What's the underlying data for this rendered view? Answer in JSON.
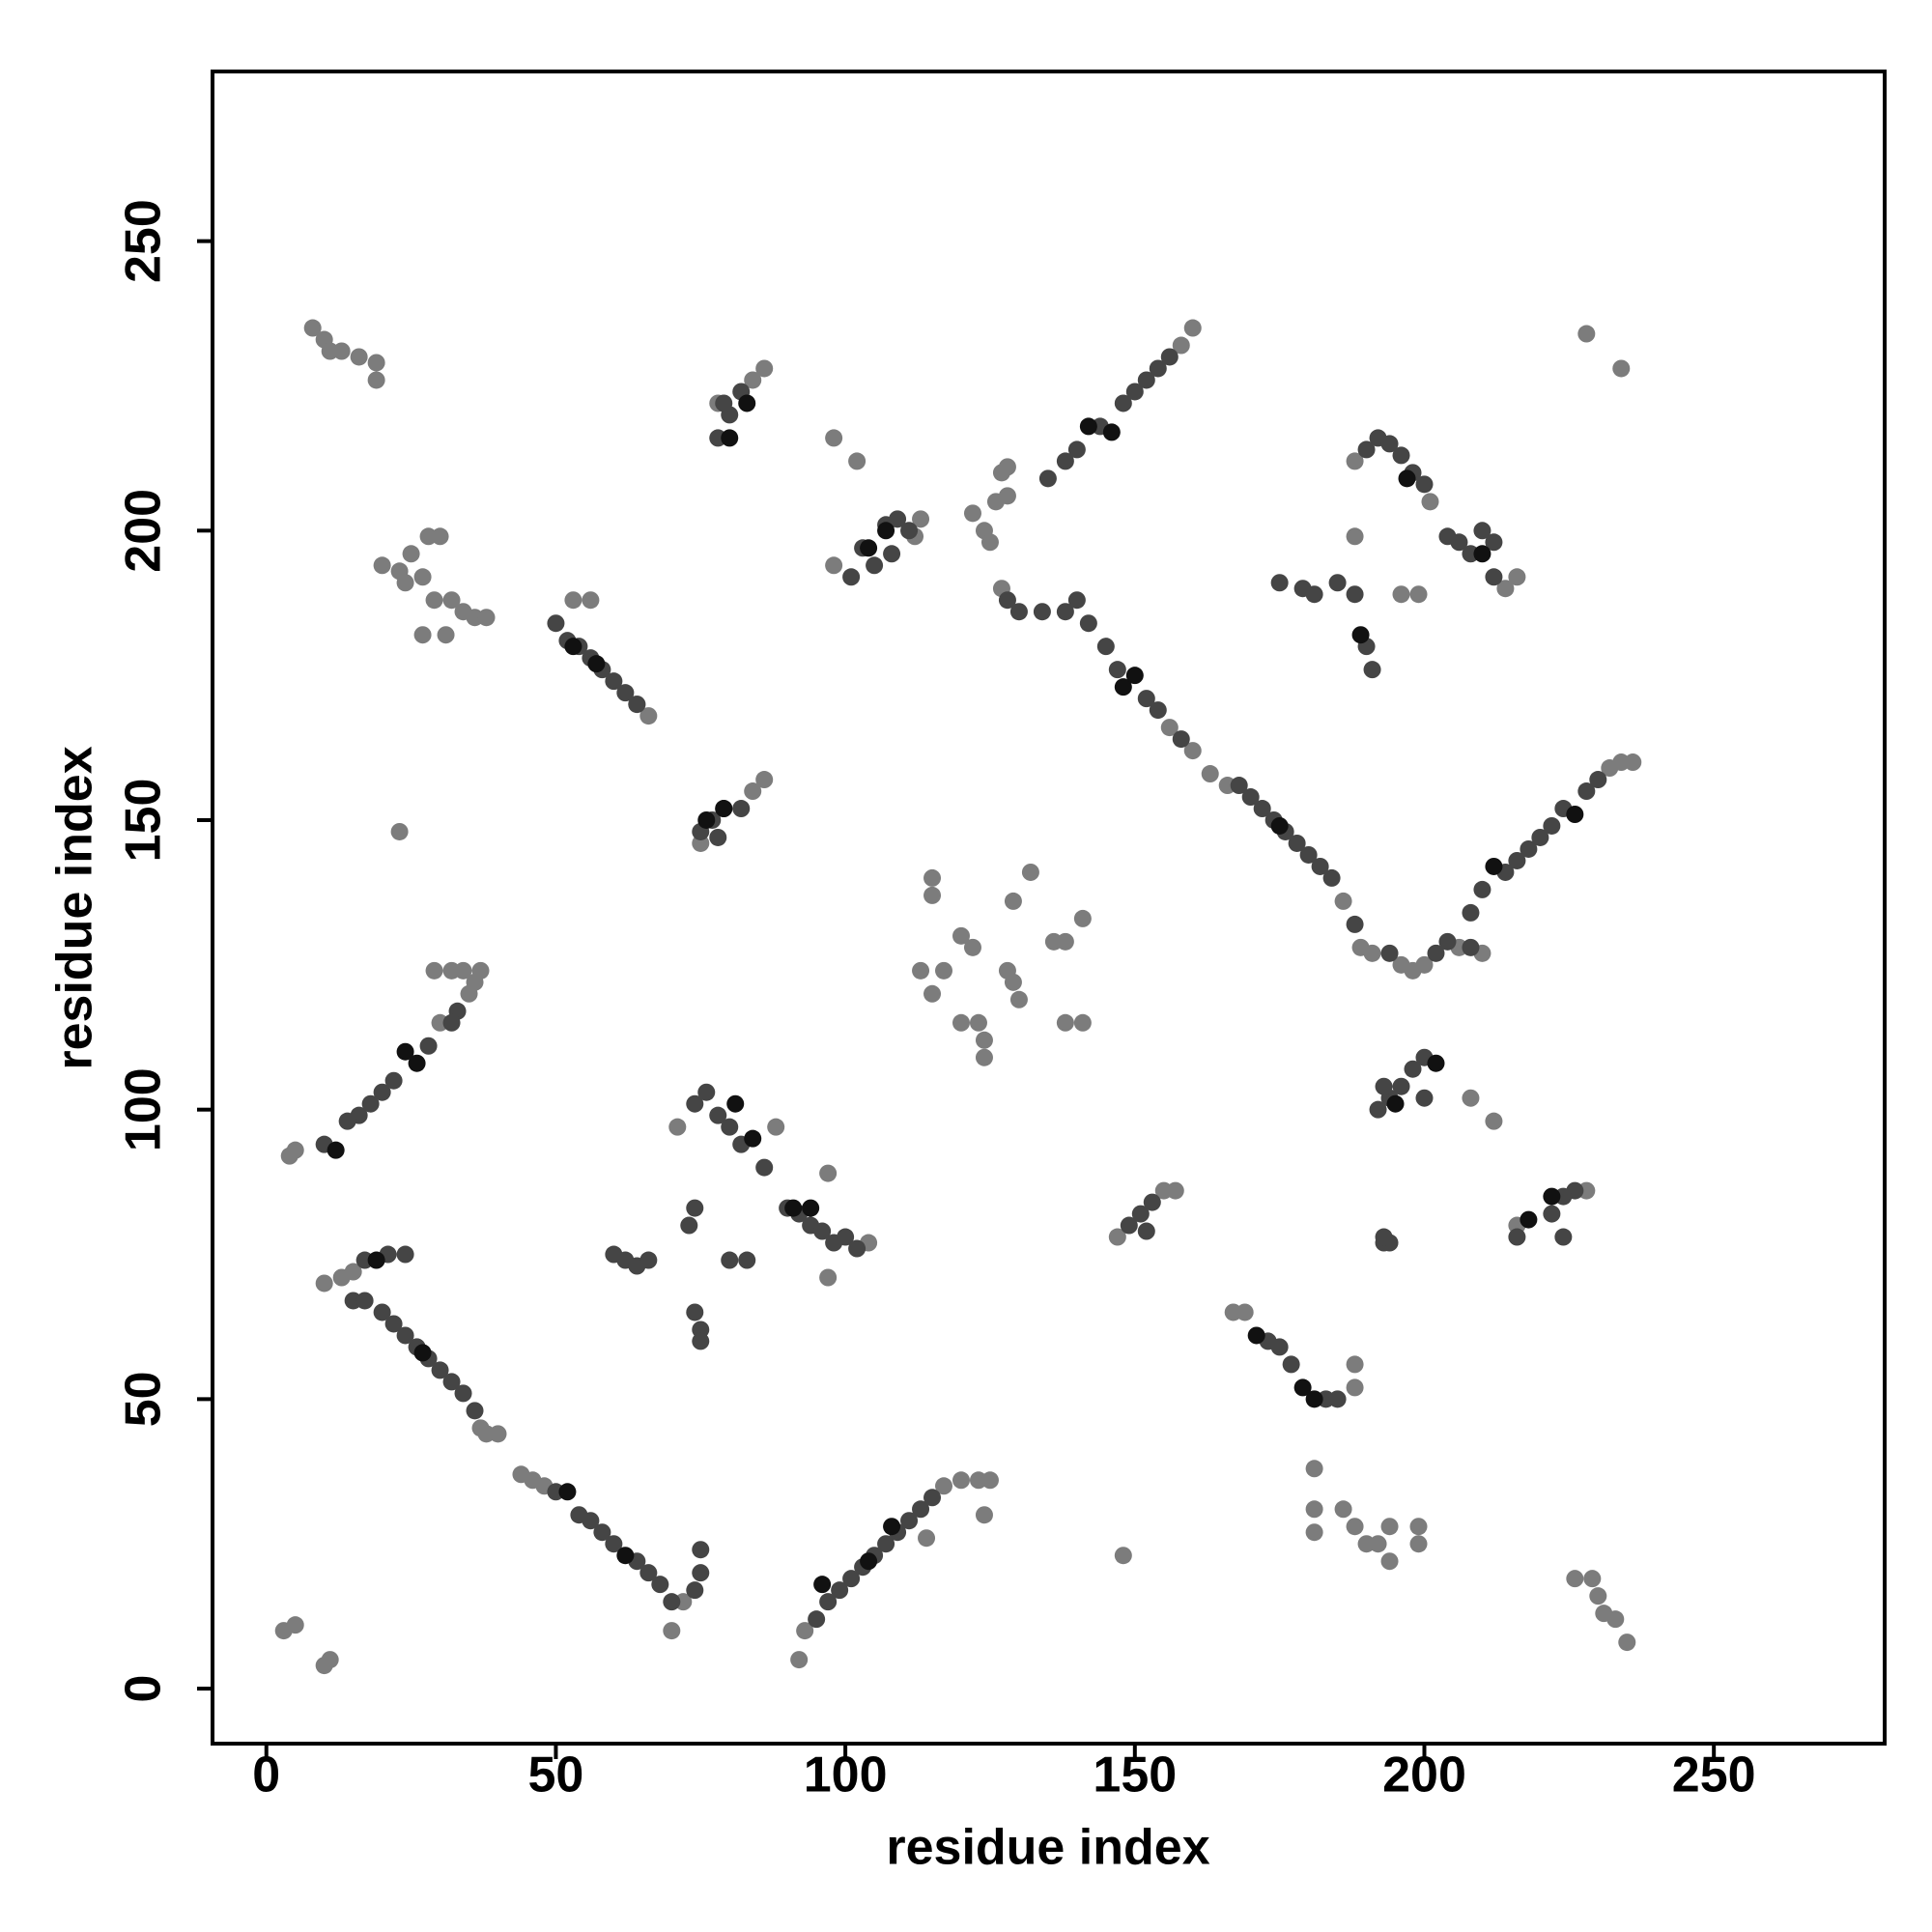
{
  "chart_data": {
    "type": "scatter",
    "xlabel": "residue index",
    "ylabel": "residue index",
    "xlim": [
      -9.3,
      279.5
    ],
    "ylim": [
      -9.5,
      279.3
    ],
    "xticks": [
      0,
      50,
      100,
      150,
      200,
      250
    ],
    "yticks": [
      0,
      50,
      100,
      150,
      200,
      250
    ],
    "marker_radius": 9,
    "series": [
      {
        "color": "#7c7c7c",
        "x": [
          8,
          10,
          11,
          13,
          16,
          19,
          19,
          20,
          23,
          25,
          27,
          28,
          30,
          29,
          32,
          34,
          36,
          38,
          27,
          31,
          24,
          98,
          102,
          122,
          124,
          126,
          127,
          128,
          125,
          127,
          128,
          115,
          115,
          120,
          122,
          117,
          113,
          115,
          120,
          123,
          124,
          124,
          128,
          129,
          130,
          132,
          129,
          136,
          138,
          138,
          141,
          141,
          4,
          5,
          29,
          32,
          34,
          35,
          36,
          37,
          30,
          37,
          38,
          40,
          44,
          46,
          48,
          10,
          13,
          15,
          117,
          120,
          123,
          125,
          124,
          114,
          208,
          212,
          148,
          181,
          181,
          181,
          186,
          188,
          190,
          192,
          194,
          194,
          199,
          199,
          226,
          229,
          230,
          231,
          233,
          235,
          228,
          234,
          5,
          3,
          11,
          10,
          23,
          53,
          56,
          88,
          97,
          71,
          72,
          70,
          92,
          93,
          160,
          158,
          236,
          234,
          232,
          196,
          199,
          188,
          188,
          188,
          210,
          206,
          200,
          196,
          198,
          189,
          191,
          186,
          163,
          166,
          156,
          160,
          167,
          169,
          157,
          155,
          147,
          228,
          216,
          98,
          113,
          112,
          104,
          97,
          201,
          188,
          216,
          214,
          84,
          86,
          78,
          86,
          84,
          66,
          64,
          75
        ],
        "values": [
          235,
          233,
          231,
          231,
          230,
          229,
          226,
          194,
          193,
          196,
          192,
          199,
          199,
          188,
          188,
          186,
          185,
          185,
          182,
          182,
          191,
          216,
          212,
          203,
          200,
          205,
          210,
          206,
          198,
          190,
          211,
          140,
          137,
          130,
          128,
          124,
          124,
          120,
          115,
          115,
          112,
          109,
          124,
          122,
          119,
          141,
          136,
          129,
          129,
          115,
          115,
          133,
          92,
          93,
          124,
          124,
          124,
          120,
          122,
          124,
          115,
          45,
          44,
          44,
          37,
          36,
          35,
          70,
          71,
          72,
          35,
          36,
          36,
          36,
          30,
          26,
          102,
          98,
          23,
          38,
          31,
          27,
          31,
          28,
          25,
          25,
          22,
          28,
          28,
          25,
          19,
          19,
          16,
          13,
          12,
          8,
          234,
          228,
          11,
          10,
          5,
          4,
          148,
          188,
          188,
          97,
          89,
          97,
          15,
          10,
          5,
          10,
          235,
          232,
          160,
          160,
          159,
          189,
          189,
          199,
          56,
          52,
          127,
          128,
          125,
          125,
          124,
          128,
          127,
          136,
          158,
          156,
          166,
          162,
          65,
          65,
          86,
          86,
          78,
          86,
          80,
          194,
          202,
          199,
          77,
          71,
          205,
          212,
          192,
          190,
          226,
          228,
          222,
          157,
          155,
          168,
          170,
          146
        ]
      },
      {
        "color": "#454545",
        "x": [
          50,
          52,
          54,
          56,
          58,
          60,
          62,
          64,
          78,
          80,
          82,
          79,
          75,
          77,
          79,
          82,
          78,
          101,
          103,
          105,
          107,
          109,
          111,
          108,
          128,
          130,
          134,
          138,
          135,
          138,
          140,
          144,
          148,
          150,
          152,
          154,
          156,
          140,
          142,
          145,
          147,
          152,
          154,
          158,
          168,
          170,
          172,
          174,
          176,
          178,
          180,
          182,
          184,
          188,
          194,
          202,
          204,
          208,
          208,
          210,
          214,
          216,
          218,
          220,
          222,
          224,
          228,
          230,
          190,
          192,
          194,
          196,
          198,
          200,
          204,
          206,
          208,
          212,
          210,
          212,
          175,
          179,
          181,
          185,
          190,
          191,
          188,
          17,
          21,
          24,
          20,
          22,
          24,
          26,
          28,
          30,
          32,
          34,
          36,
          50,
          54,
          56,
          58,
          60,
          64,
          66,
          68,
          70,
          74,
          75,
          75,
          15,
          17,
          95,
          97,
          99,
          101,
          103,
          105,
          107,
          109,
          111,
          113,
          115,
          74,
          76,
          78,
          80,
          82,
          86,
          90,
          92,
          94,
          96,
          98,
          100,
          102,
          73,
          74,
          74,
          75,
          75,
          80,
          83,
          60,
          62,
          64,
          66,
          149,
          151,
          153,
          152,
          193,
          194,
          193,
          192,
          194,
          196,
          198,
          200,
          200,
          193,
          224,
          222,
          216,
          226,
          224,
          173,
          175,
          177,
          183,
          185,
          20,
          22,
          16,
          14,
          28,
          10,
          18,
          33,
          32
        ],
        "values": [
          184,
          181,
          180,
          178,
          176,
          174,
          172,
          170,
          216,
          220,
          224,
          222,
          148,
          150,
          152,
          152,
          147,
          192,
          197,
          194,
          201,
          202,
          200,
          196,
          188,
          186,
          186,
          186,
          209,
          212,
          214,
          218,
          222,
          224,
          226,
          228,
          230,
          188,
          184,
          180,
          176,
          171,
          169,
          164,
          156,
          154,
          152,
          150,
          148,
          146,
          144,
          142,
          140,
          132,
          127,
          127,
          129,
          128,
          134,
          138,
          141,
          143,
          145,
          147,
          149,
          152,
          155,
          157,
          214,
          216,
          215,
          213,
          210,
          208,
          199,
          198,
          196,
          192,
          200,
          198,
          191,
          190,
          189,
          191,
          180,
          176,
          189,
          74,
          75,
          75,
          65,
          63,
          61,
          59,
          57,
          55,
          53,
          51,
          48,
          34,
          30,
          29,
          27,
          25,
          22,
          20,
          18,
          15,
          17,
          20,
          24,
          67,
          67,
          12,
          15,
          17,
          19,
          21,
          23,
          25,
          27,
          29,
          31,
          33,
          101,
          103,
          99,
          97,
          94,
          90,
          83,
          82,
          80,
          79,
          77,
          78,
          76,
          80,
          83,
          65,
          62,
          60,
          74,
          74,
          75,
          74,
          73,
          74,
          80,
          82,
          84,
          79,
          77,
          77,
          78,
          100,
          102,
          104,
          107,
          109,
          102,
          104,
          78,
          82,
          78,
          86,
          85,
          60,
          59,
          56,
          50,
          50,
          103,
          105,
          99,
          98,
          111,
          94,
          101,
          117,
          115
        ]
      },
      {
        "color": "#111111",
        "x": [
          53,
          57,
          24,
          26,
          12,
          76,
          79,
          107,
          104,
          148,
          150,
          175,
          179,
          181,
          171,
          195,
          202,
          218,
          222,
          96,
          104,
          108,
          52,
          62,
          91,
          94,
          81,
          84,
          83,
          80,
          197,
          210,
          212,
          226,
          142,
          146,
          189,
          19,
          27
        ],
        "values": [
          180,
          177,
          110,
          108,
          93,
          150,
          152,
          200,
          197,
          173,
          175,
          149,
          52,
          50,
          61,
          101,
          108,
          81,
          85,
          18,
          22,
          28,
          34,
          23,
          83,
          83,
          101,
          95,
          222,
          216,
          209,
          196,
          142,
          151,
          218,
          217,
          182,
          74,
          58
        ]
      }
    ]
  }
}
